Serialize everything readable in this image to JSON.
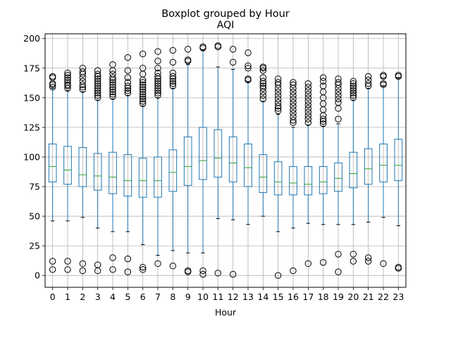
{
  "chart_data": {
    "type": "boxplot",
    "suptitle": "Boxplot grouped by Hour",
    "title": "AQI",
    "xlabel": "Hour",
    "ylabel": "",
    "ylim": [
      -10,
      204
    ],
    "yticks": [
      0,
      25,
      50,
      75,
      100,
      125,
      150,
      175,
      200
    ],
    "grid": true,
    "colors": {
      "box": "#1f77b4",
      "median": "#2ca02c",
      "flier": "#000000",
      "grid": "#b0b0b0"
    },
    "categories": [
      "0",
      "1",
      "2",
      "3",
      "4",
      "5",
      "6",
      "7",
      "8",
      "9",
      "10",
      "11",
      "12",
      "13",
      "14",
      "15",
      "16",
      "17",
      "18",
      "19",
      "20",
      "21",
      "22",
      "23"
    ],
    "boxes": [
      {
        "whislo": 46,
        "q1": 79,
        "med": 92,
        "q3": 111,
        "whishi": 158,
        "fliers": [
          5,
          12,
          159,
          161,
          162,
          167,
          168
        ]
      },
      {
        "whislo": 46,
        "q1": 77,
        "med": 89,
        "q3": 109,
        "whishi": 156,
        "fliers": [
          5,
          12,
          158,
          160,
          161,
          163,
          165,
          167,
          169,
          171
        ]
      },
      {
        "whislo": 49,
        "q1": 75,
        "med": 85,
        "q3": 108,
        "whishi": 155,
        "fliers": [
          4,
          10,
          157,
          159,
          161,
          164,
          167,
          170,
          172,
          175
        ]
      },
      {
        "whislo": 40,
        "q1": 72,
        "med": 84,
        "q3": 103,
        "whishi": 148,
        "fliers": [
          4,
          9,
          150,
          152,
          154,
          156,
          158,
          160,
          162,
          164,
          166,
          168,
          170,
          173
        ]
      },
      {
        "whislo": 37,
        "q1": 69,
        "med": 83,
        "q3": 104,
        "whishi": 149,
        "fliers": [
          5,
          15,
          151,
          153,
          155,
          157,
          159,
          161,
          163,
          165,
          167,
          170,
          173,
          178
        ]
      },
      {
        "whislo": 37,
        "q1": 67,
        "med": 80,
        "q3": 102,
        "whishi": 152,
        "fliers": [
          3,
          14,
          154,
          156,
          158,
          160,
          163,
          167,
          173,
          184
        ]
      },
      {
        "whislo": 26,
        "q1": 66,
        "med": 80,
        "q3": 99,
        "whishi": 143,
        "fliers": [
          5,
          7,
          145,
          147,
          149,
          151,
          153,
          155,
          157,
          159,
          161,
          163,
          165,
          170,
          175,
          187
        ]
      },
      {
        "whislo": 17,
        "q1": 66,
        "med": 80,
        "q3": 100,
        "whishi": 150,
        "fliers": [
          10,
          152,
          154,
          156,
          158,
          160,
          162,
          164,
          166,
          168,
          171,
          175,
          181,
          189
        ]
      },
      {
        "whislo": 21,
        "q1": 71,
        "med": 87,
        "q3": 106,
        "whishi": 158,
        "fliers": [
          8,
          160,
          162,
          164,
          166,
          168,
          171,
          180,
          190
        ]
      },
      {
        "whislo": 19,
        "q1": 76,
        "med": 92,
        "q3": 117,
        "whishi": 178,
        "fliers": [
          3,
          4,
          181,
          182,
          191
        ]
      },
      {
        "whislo": 19,
        "q1": 81,
        "med": 97,
        "q3": 125,
        "whishi": 190,
        "fliers": [
          1,
          4,
          192,
          193
        ]
      },
      {
        "whislo": 48,
        "q1": 83,
        "med": 99,
        "q3": 123,
        "whishi": 176,
        "fliers": [
          2,
          193,
          194
        ]
      },
      {
        "whislo": 47,
        "q1": 79,
        "med": 95,
        "q3": 117,
        "whishi": 174,
        "fliers": [
          1,
          180,
          191
        ]
      },
      {
        "whislo": 43,
        "q1": 75,
        "med": 91,
        "q3": 111,
        "whishi": 163,
        "fliers": [
          165,
          166,
          175,
          177,
          188
        ]
      },
      {
        "whislo": 50,
        "q1": 70,
        "med": 83,
        "q3": 102,
        "whishi": 147,
        "fliers": [
          149,
          152,
          155,
          158,
          160,
          162,
          164,
          167,
          173,
          175,
          176
        ]
      },
      {
        "whislo": 37,
        "q1": 68,
        "med": 79,
        "q3": 96,
        "whishi": 136,
        "fliers": [
          0,
          139,
          141,
          143,
          146,
          149,
          152,
          155,
          158,
          161,
          163,
          166
        ]
      },
      {
        "whislo": 40,
        "q1": 68,
        "med": 78,
        "q3": 92,
        "whishi": 125,
        "fliers": [
          4,
          129,
          131,
          134,
          137,
          140,
          143,
          146,
          149,
          152,
          155,
          158,
          161,
          163
        ]
      },
      {
        "whislo": 44,
        "q1": 68,
        "med": 77,
        "q3": 92,
        "whishi": 127,
        "fliers": [
          10,
          129,
          132,
          135,
          138,
          141,
          144,
          147,
          150,
          153,
          156,
          159,
          162
        ]
      },
      {
        "whislo": 43,
        "q1": 69,
        "med": 79,
        "q3": 92,
        "whishi": 126,
        "fliers": [
          11,
          128,
          130,
          132,
          135,
          140,
          145,
          150,
          155,
          160,
          164,
          167
        ]
      },
      {
        "whislo": 43,
        "q1": 71,
        "med": 82,
        "q3": 95,
        "whishi": 128,
        "fliers": [
          3,
          18,
          132,
          141,
          146,
          149,
          152,
          155,
          158,
          161,
          163,
          166
        ]
      },
      {
        "whislo": 43,
        "q1": 74,
        "med": 86,
        "q3": 104,
        "whishi": 148,
        "fliers": [
          12,
          18,
          150,
          152,
          154,
          156,
          158,
          160,
          162,
          164
        ]
      },
      {
        "whislo": 45,
        "q1": 77,
        "med": 90,
        "q3": 107,
        "whishi": 158,
        "fliers": [
          12,
          15,
          160,
          162,
          165,
          168
        ]
      },
      {
        "whislo": 49,
        "q1": 79,
        "med": 93,
        "q3": 111,
        "whishi": 160,
        "fliers": [
          10,
          161,
          162,
          168,
          169
        ]
      },
      {
        "whislo": 42,
        "q1": 80,
        "med": 93,
        "q3": 115,
        "whishi": 167,
        "fliers": [
          6,
          7,
          168,
          169
        ]
      }
    ]
  }
}
